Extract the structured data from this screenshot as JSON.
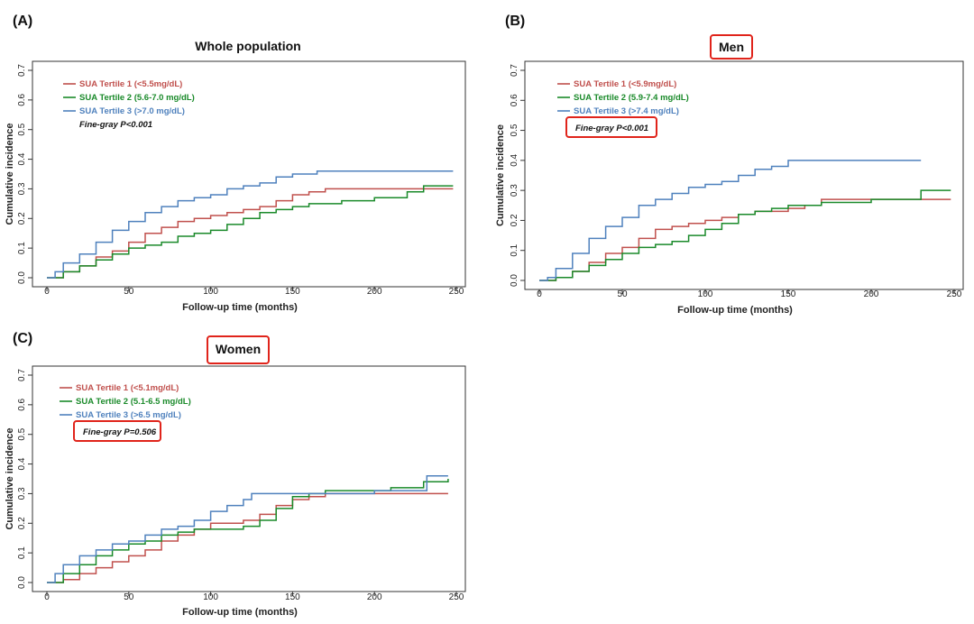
{
  "colors": {
    "tertile1": "#c0504d",
    "tertile2": "#1a8a2a",
    "tertile3": "#4f81bd",
    "highlight": "#e0241b"
  },
  "chart_data": [
    {
      "panel_label": "(A)",
      "type": "line",
      "step": true,
      "title": "Whole population",
      "title_boxed": false,
      "xlabel": "Follow-up time (months)",
      "ylabel": "Cumulative incidence",
      "xlim": [
        0,
        250
      ],
      "ylim": [
        0,
        0.7
      ],
      "xticks": [
        "0",
        "50",
        "100",
        "150",
        "200",
        "250"
      ],
      "yticks": [
        "0.0",
        "0.1",
        "0.2",
        "0.3",
        "0.4",
        "0.5",
        "0.6",
        "0.7"
      ],
      "pvalue": "Fine-gray P<0.001",
      "pvalue_boxed": false,
      "legend_position": "top-left",
      "series": [
        {
          "name": "SUA Tertile 1 (<5.5mg/dL)",
          "color": "#c0504d",
          "x": [
            0,
            10,
            20,
            30,
            40,
            50,
            60,
            70,
            80,
            90,
            100,
            110,
            120,
            130,
            140,
            150,
            160,
            170,
            180,
            200,
            220,
            248
          ],
          "y": [
            0,
            0.02,
            0.04,
            0.07,
            0.09,
            0.12,
            0.15,
            0.17,
            0.19,
            0.2,
            0.21,
            0.22,
            0.23,
            0.24,
            0.26,
            0.28,
            0.29,
            0.3,
            0.3,
            0.3,
            0.3,
            0.3
          ]
        },
        {
          "name": "SUA Tertile 2 (5.6-7.0 mg/dL)",
          "color": "#1a8a2a",
          "x": [
            0,
            10,
            20,
            30,
            40,
            50,
            60,
            70,
            80,
            90,
            100,
            110,
            120,
            130,
            140,
            150,
            160,
            170,
            180,
            200,
            220,
            230,
            248
          ],
          "y": [
            0,
            0.02,
            0.04,
            0.06,
            0.08,
            0.1,
            0.11,
            0.12,
            0.14,
            0.15,
            0.16,
            0.18,
            0.2,
            0.22,
            0.23,
            0.24,
            0.25,
            0.25,
            0.26,
            0.27,
            0.29,
            0.31,
            0.31
          ]
        },
        {
          "name": "SUA Tertile 3 (>7.0 mg/dL)",
          "color": "#4f81bd",
          "x": [
            0,
            5,
            10,
            20,
            30,
            40,
            50,
            60,
            70,
            80,
            90,
            100,
            110,
            120,
            130,
            140,
            150,
            160,
            165,
            200,
            248
          ],
          "y": [
            0,
            0.02,
            0.05,
            0.08,
            0.12,
            0.16,
            0.19,
            0.22,
            0.24,
            0.26,
            0.27,
            0.28,
            0.3,
            0.31,
            0.32,
            0.34,
            0.35,
            0.35,
            0.36,
            0.36,
            0.36
          ]
        }
      ]
    },
    {
      "panel_label": "(B)",
      "type": "line",
      "step": true,
      "title": "Men",
      "title_boxed": true,
      "xlabel": "Follow-up time (months)",
      "ylabel": "Cumulative incidence",
      "xlim": [
        0,
        250
      ],
      "ylim": [
        0,
        0.7
      ],
      "xticks": [
        "0",
        "50",
        "100",
        "150",
        "200",
        "250"
      ],
      "yticks": [
        "0.0",
        "0.1",
        "0.2",
        "0.3",
        "0.4",
        "0.5",
        "0.6",
        "0.7"
      ],
      "pvalue": "Fine-gray P<0.001",
      "pvalue_boxed": true,
      "legend_position": "top-left",
      "series": [
        {
          "name": "SUA Tertile 1 (<5.9mg/dL)",
          "color": "#c0504d",
          "x": [
            0,
            10,
            20,
            30,
            40,
            50,
            60,
            70,
            80,
            90,
            100,
            110,
            120,
            130,
            140,
            150,
            160,
            170,
            200,
            248
          ],
          "y": [
            0,
            0.01,
            0.03,
            0.06,
            0.09,
            0.11,
            0.14,
            0.17,
            0.18,
            0.19,
            0.2,
            0.21,
            0.22,
            0.23,
            0.23,
            0.24,
            0.25,
            0.27,
            0.27,
            0.27
          ]
        },
        {
          "name": "SUA Tertile 2 (5.9-7.4 mg/dL)",
          "color": "#1a8a2a",
          "x": [
            0,
            10,
            20,
            30,
            40,
            50,
            60,
            70,
            80,
            90,
            100,
            110,
            120,
            130,
            140,
            150,
            160,
            170,
            200,
            230,
            248
          ],
          "y": [
            0,
            0.01,
            0.03,
            0.05,
            0.07,
            0.09,
            0.11,
            0.12,
            0.13,
            0.15,
            0.17,
            0.19,
            0.22,
            0.23,
            0.24,
            0.25,
            0.25,
            0.26,
            0.27,
            0.3,
            0.3
          ]
        },
        {
          "name": "SUA Tertile 3 (>7.4 mg/dL)",
          "color": "#4f81bd",
          "x": [
            0,
            5,
            10,
            20,
            30,
            40,
            50,
            60,
            70,
            80,
            90,
            100,
            110,
            120,
            130,
            140,
            150,
            200,
            230
          ],
          "y": [
            0,
            0.01,
            0.04,
            0.09,
            0.14,
            0.18,
            0.21,
            0.25,
            0.27,
            0.29,
            0.31,
            0.32,
            0.33,
            0.35,
            0.37,
            0.38,
            0.4,
            0.4,
            0.4
          ]
        }
      ]
    },
    {
      "panel_label": "(C)",
      "type": "line",
      "step": true,
      "title": "Women",
      "title_boxed": true,
      "xlabel": "Follow-up time (months)",
      "ylabel": "Cumulative incidence",
      "xlim": [
        0,
        250
      ],
      "ylim": [
        0,
        0.7
      ],
      "xticks": [
        "0",
        "50",
        "100",
        "150",
        "200",
        "250"
      ],
      "yticks": [
        "0.0",
        "0.1",
        "0.2",
        "0.3",
        "0.4",
        "0.5",
        "0.6",
        "0.7"
      ],
      "pvalue": "Fine-gray P=0.506",
      "pvalue_boxed": true,
      "legend_position": "top-left",
      "series": [
        {
          "name": "SUA Tertile 1 (<5.1mg/dL)",
          "color": "#c0504d",
          "x": [
            0,
            10,
            20,
            30,
            40,
            50,
            60,
            70,
            80,
            90,
            100,
            110,
            120,
            130,
            140,
            150,
            160,
            170,
            200,
            245
          ],
          "y": [
            0,
            0.01,
            0.03,
            0.05,
            0.07,
            0.09,
            0.11,
            0.14,
            0.16,
            0.18,
            0.2,
            0.2,
            0.21,
            0.23,
            0.26,
            0.28,
            0.29,
            0.3,
            0.3,
            0.3
          ]
        },
        {
          "name": "SUA Tertile 2 (5.1-6.5 mg/dL)",
          "color": "#1a8a2a",
          "x": [
            0,
            10,
            20,
            30,
            40,
            50,
            60,
            70,
            80,
            90,
            100,
            110,
            120,
            130,
            140,
            150,
            160,
            170,
            190,
            210,
            230,
            245
          ],
          "y": [
            0,
            0.03,
            0.06,
            0.09,
            0.11,
            0.13,
            0.14,
            0.16,
            0.17,
            0.18,
            0.18,
            0.18,
            0.19,
            0.21,
            0.25,
            0.29,
            0.3,
            0.31,
            0.31,
            0.32,
            0.34,
            0.35
          ]
        },
        {
          "name": "SUA Tertile 3 (>6.5 mg/dL)",
          "color": "#4f81bd",
          "x": [
            0,
            5,
            10,
            20,
            30,
            40,
            50,
            60,
            70,
            80,
            90,
            100,
            110,
            120,
            125,
            150,
            200,
            230,
            232,
            245
          ],
          "y": [
            0,
            0.03,
            0.06,
            0.09,
            0.11,
            0.13,
            0.14,
            0.16,
            0.18,
            0.19,
            0.21,
            0.24,
            0.26,
            0.28,
            0.3,
            0.3,
            0.31,
            0.31,
            0.36,
            0.36
          ]
        }
      ]
    }
  ]
}
